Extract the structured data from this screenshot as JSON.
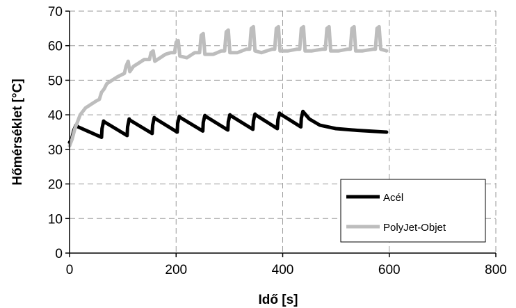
{
  "chart_data": {
    "type": "line",
    "xlabel": "Idő [s]",
    "ylabel": "Hőmérséklet [°C]",
    "xlim": [
      0,
      800
    ],
    "ylim": [
      0,
      70
    ],
    "x_ticks": [
      "0",
      "200",
      "400",
      "600",
      "800"
    ],
    "y_ticks": [
      "0",
      "10",
      "20",
      "30",
      "40",
      "50",
      "60",
      "70"
    ],
    "grid": "dashed",
    "legend_position": "bottom-right",
    "colors": {
      "Acél": "#000000",
      "PolyJet-Objet": "#bdbdbd"
    },
    "series": [
      {
        "name": "Acél",
        "x": [
          0,
          4,
          8,
          12,
          16,
          60,
          61,
          64,
          65,
          108,
          109,
          112,
          113,
          155,
          156,
          159,
          160,
          202,
          203,
          206,
          207,
          250,
          251,
          254,
          255,
          297,
          298,
          301,
          302,
          344,
          345,
          348,
          349,
          390,
          391,
          394,
          395,
          434,
          435,
          438,
          439,
          450,
          470,
          500,
          540,
          595
        ],
        "y": [
          32,
          33,
          35.5,
          37,
          36.5,
          33.5,
          36,
          38.2,
          38,
          34,
          36.5,
          38.8,
          38.5,
          34.6,
          37,
          39.2,
          39,
          35,
          37.5,
          39.5,
          39.3,
          35.3,
          37.8,
          39.8,
          39.6,
          35.6,
          38,
          40,
          39.8,
          35.8,
          38.2,
          40.2,
          40,
          36,
          38.5,
          40.5,
          40.3,
          36.5,
          39,
          41,
          40.8,
          38.8,
          37,
          36,
          35.5,
          35
        ]
      },
      {
        "name": "PolyJet-Objet",
        "x": [
          0,
          5,
          10,
          15,
          20,
          30,
          40,
          50,
          56,
          60,
          65,
          70,
          80,
          90,
          103,
          106,
          110,
          113,
          120,
          130,
          140,
          150,
          153,
          157,
          160,
          170,
          180,
          190,
          197,
          200,
          204,
          207,
          220,
          235,
          244,
          247,
          251,
          254,
          270,
          285,
          291,
          294,
          298,
          301,
          315,
          332,
          338,
          341,
          345,
          348,
          360,
          380,
          385,
          388,
          392,
          395,
          410,
          427,
          432,
          435,
          439,
          442,
          455,
          475,
          480,
          483,
          487,
          490,
          505,
          522,
          527,
          530,
          534,
          537,
          550,
          570,
          574,
          577,
          581,
          584,
          595
        ],
        "y": [
          31,
          33,
          36,
          38,
          40,
          42,
          43,
          44,
          44.5,
          46.5,
          47.5,
          49,
          50,
          51,
          52,
          54,
          55.5,
          52.5,
          54,
          55,
          56,
          56,
          58,
          58.5,
          55.5,
          56.5,
          57.5,
          58,
          58,
          61,
          61.5,
          57,
          56.5,
          58,
          58,
          63,
          63.5,
          57.5,
          57.5,
          58.5,
          58.5,
          64,
          64.5,
          58,
          58,
          59,
          59,
          65,
          65.5,
          58.5,
          58,
          59,
          59,
          65,
          65.5,
          58.5,
          58.5,
          59,
          59,
          65,
          65.5,
          58.5,
          58.5,
          59,
          59,
          65,
          65.5,
          58.5,
          58.5,
          59,
          59,
          65,
          65.5,
          58.5,
          58.5,
          59,
          59,
          65,
          65.5,
          59,
          58.5
        ]
      }
    ]
  }
}
